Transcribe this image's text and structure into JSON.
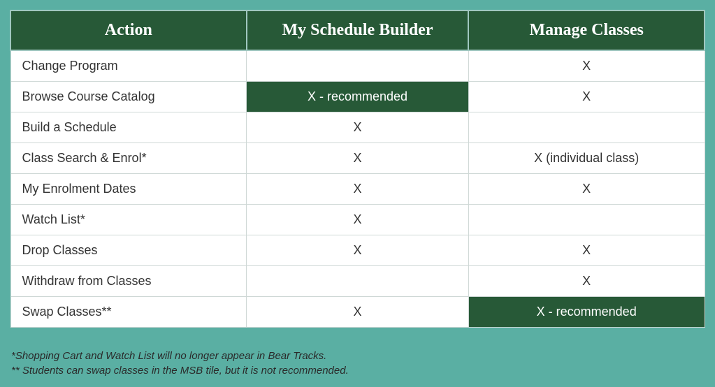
{
  "table": {
    "header_bg": "#275937",
    "header_color": "#ffffff",
    "row_bg": "#ffffff",
    "recommended_bg": "#275937",
    "recommended_color": "#ffffff",
    "border_color": "#cfd8d6",
    "page_bg": "#5aafa3",
    "columns": [
      "Action",
      "My Schedule Builder",
      "Manage Classes"
    ],
    "rows": [
      {
        "action": "Change Program",
        "msb": "",
        "msb_rec": false,
        "mc": "X",
        "mc_rec": false
      },
      {
        "action": "Browse Course Catalog",
        "msb": "X - recommended",
        "msb_rec": true,
        "mc": "X",
        "mc_rec": false
      },
      {
        "action": "Build a Schedule",
        "msb": "X",
        "msb_rec": false,
        "mc": "",
        "mc_rec": false
      },
      {
        "action": "Class Search & Enrol*",
        "msb": "X",
        "msb_rec": false,
        "mc": "X (individual class)",
        "mc_rec": false
      },
      {
        "action": "My Enrolment Dates",
        "msb": "X",
        "msb_rec": false,
        "mc": "X",
        "mc_rec": false
      },
      {
        "action": "Watch List*",
        "msb": "X",
        "msb_rec": false,
        "mc": "",
        "mc_rec": false
      },
      {
        "action": "Drop Classes",
        "msb": "X",
        "msb_rec": false,
        "mc": "X",
        "mc_rec": false
      },
      {
        "action": "Withdraw from Classes",
        "msb": "",
        "msb_rec": false,
        "mc": "X",
        "mc_rec": false
      },
      {
        "action": "Swap Classes**",
        "msb": "X",
        "msb_rec": false,
        "mc": "X - recommended",
        "mc_rec": true
      }
    ]
  },
  "footnotes": {
    "line1": "*Shopping Cart and Watch List will no longer appear in Bear Tracks.",
    "line2": "** Students can swap classes in the MSB tile, but it is not recommended."
  }
}
